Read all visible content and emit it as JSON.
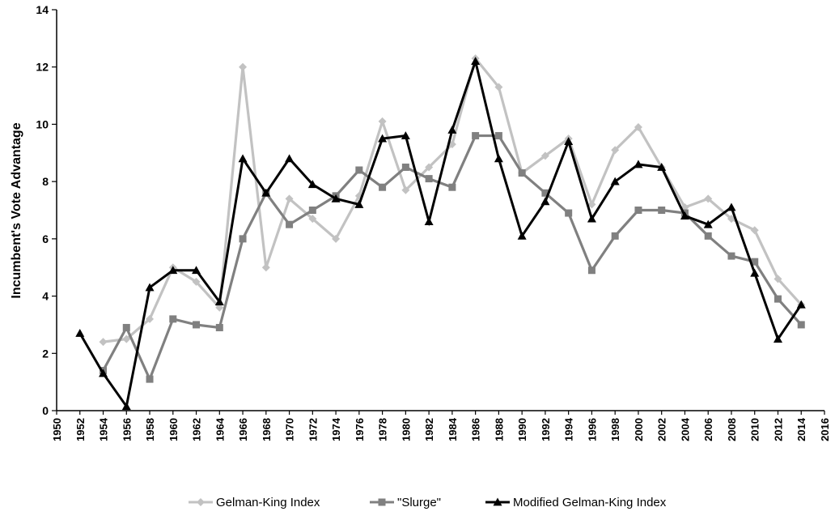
{
  "chart_data": {
    "type": "line",
    "title": "",
    "xlabel": "",
    "ylabel": "Incumbent's Vote Advantage",
    "xlim": [
      1950,
      2016
    ],
    "ylim": [
      0,
      14
    ],
    "x_ticks": [
      1950,
      1952,
      1954,
      1956,
      1958,
      1960,
      1962,
      1964,
      1966,
      1968,
      1970,
      1972,
      1974,
      1976,
      1978,
      1980,
      1982,
      1984,
      1986,
      1988,
      1990,
      1992,
      1994,
      1996,
      1998,
      2000,
      2002,
      2004,
      2006,
      2008,
      2010,
      2012,
      2014,
      2016
    ],
    "y_ticks": [
      0,
      2,
      4,
      6,
      8,
      10,
      12,
      14
    ],
    "grid": false,
    "legend_position": "bottom",
    "series": [
      {
        "name": "Gelman-King Index",
        "color": "#c2c2c2",
        "marker": "diamond",
        "x": [
          1954,
          1956,
          1958,
          1960,
          1962,
          1964,
          1966,
          1968,
          1970,
          1972,
          1974,
          1976,
          1978,
          1980,
          1982,
          1984,
          1986,
          1988,
          1990,
          1992,
          1994,
          1996,
          1998,
          2000,
          2002,
          2004,
          2006,
          2008,
          2010,
          2012,
          2014
        ],
        "values": [
          2.4,
          2.5,
          3.2,
          5.0,
          4.5,
          3.6,
          12.0,
          5.0,
          7.4,
          6.7,
          6.0,
          7.5,
          10.1,
          7.7,
          8.5,
          9.3,
          12.3,
          11.3,
          8.3,
          8.9,
          9.5,
          7.2,
          9.1,
          9.9,
          8.5,
          7.1,
          7.4,
          6.7,
          6.3,
          4.6,
          3.7
        ]
      },
      {
        "name": "\"Slurge\"",
        "color": "#808080",
        "marker": "square",
        "x": [
          1954,
          1956,
          1958,
          1960,
          1962,
          1964,
          1966,
          1968,
          1970,
          1972,
          1974,
          1976,
          1978,
          1980,
          1982,
          1984,
          1986,
          1988,
          1990,
          1992,
          1994,
          1996,
          1998,
          2000,
          2002,
          2004,
          2006,
          2008,
          2010,
          2012,
          2014
        ],
        "values": [
          1.4,
          2.9,
          1.1,
          3.2,
          3.0,
          2.9,
          6.0,
          7.6,
          6.5,
          7.0,
          7.5,
          8.4,
          7.8,
          8.5,
          8.1,
          7.8,
          9.6,
          9.6,
          8.3,
          7.6,
          6.9,
          4.9,
          6.1,
          7.0,
          7.0,
          6.9,
          6.1,
          5.4,
          5.2,
          3.9,
          3.0
        ]
      },
      {
        "name": "Modified Gelman-King Index",
        "color": "#000000",
        "marker": "triangle",
        "x": [
          1952,
          1954,
          1956,
          1958,
          1960,
          1962,
          1964,
          1966,
          1968,
          1970,
          1972,
          1974,
          1976,
          1978,
          1980,
          1982,
          1984,
          1986,
          1988,
          1990,
          1992,
          1994,
          1996,
          1998,
          2000,
          2002,
          2004,
          2006,
          2008,
          2010,
          2012,
          2014
        ],
        "values": [
          2.7,
          1.3,
          0.15,
          4.3,
          4.9,
          4.9,
          3.8,
          8.8,
          7.6,
          8.8,
          7.9,
          7.4,
          7.2,
          9.5,
          9.6,
          6.6,
          9.8,
          12.2,
          8.8,
          6.1,
          7.3,
          9.4,
          6.7,
          8.0,
          8.6,
          8.5,
          6.8,
          6.5,
          7.1,
          4.8,
          2.5,
          3.7
        ]
      }
    ]
  }
}
